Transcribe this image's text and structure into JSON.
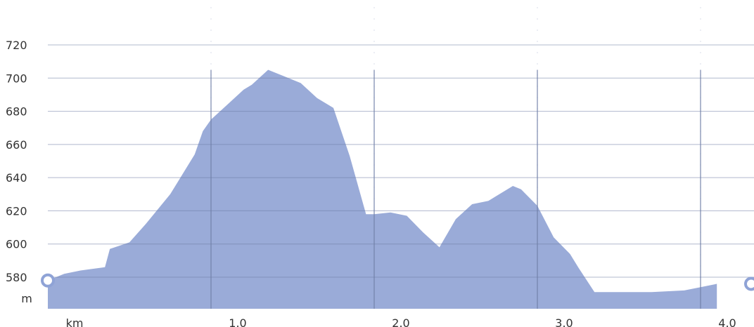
{
  "chart_data": {
    "type": "area",
    "title": "",
    "xlabel": "km",
    "ylabel": "m",
    "x_ticks": [
      1.0,
      2.0,
      3.0,
      4.0
    ],
    "x_tick_labels": [
      "1.0",
      "2.0",
      "3.0",
      "4.0"
    ],
    "y_ticks": [
      580,
      600,
      620,
      640,
      660,
      680,
      700,
      720
    ],
    "y_tick_labels": [
      "580",
      "600",
      "620",
      "640",
      "660",
      "680",
      "700",
      "720"
    ],
    "xlim": [
      0,
      4.1
    ],
    "ylim": [
      568,
      728
    ],
    "grid": true,
    "legend": "none",
    "colors": {
      "fill": "#9aabd8",
      "grid": "#6f7ea6",
      "marker": "#8fa3d6"
    },
    "series": [
      {
        "x": [
          0,
          0.1,
          0.2,
          0.35,
          0.38,
          0.5,
          0.6,
          0.75,
          0.9,
          0.95,
          1.0,
          1.1,
          1.2,
          1.25,
          1.35,
          1.45,
          1.55,
          1.65,
          1.75,
          1.85,
          1.95,
          2.0,
          2.1,
          2.2,
          2.3,
          2.4,
          2.5,
          2.6,
          2.7,
          2.75,
          2.85,
          2.9,
          3.0,
          3.1,
          3.2,
          3.25,
          3.35,
          3.5,
          3.6,
          3.7,
          3.9,
          4.0,
          4.1
        ],
        "y": [
          578,
          582,
          584,
          586,
          597,
          601,
          612,
          630,
          654,
          668,
          675,
          684,
          693,
          696,
          705,
          701,
          697,
          688,
          682,
          653,
          618,
          618,
          619,
          617,
          607,
          598,
          615,
          624,
          626,
          629,
          635,
          633,
          623,
          604,
          594,
          586,
          571,
          571,
          571,
          571,
          572,
          574,
          576
        ]
      }
    ]
  }
}
